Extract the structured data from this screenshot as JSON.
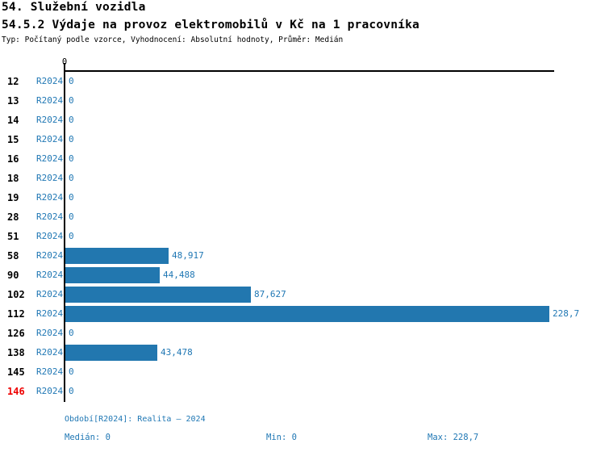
{
  "header": {
    "title1": "54. Služební vozidla",
    "title2": "54.5.2 Výdaje na provoz elektromobilů v Kč na 1 pracovníka",
    "meta": "Typ: Počítaný podle vzorce, Vyhodnocení: Absolutní hodnoty, Průměr: Medián"
  },
  "chart_data": {
    "type": "bar",
    "orientation": "horizontal",
    "title": "54.5.2 Výdaje na provoz elektromobilů v Kč na 1 pracovníka",
    "series_label": "R2024",
    "x_axis": {
      "position": "top",
      "ticks": [
        "0"
      ],
      "range": [
        0,
        231.4
      ]
    },
    "bar_color": "#2277af",
    "value_color": "#1f77b4",
    "highlight_color": "#ee0000",
    "rows": [
      {
        "category": "12",
        "value": 0,
        "display": "0",
        "highlight": false
      },
      {
        "category": "13",
        "value": 0,
        "display": "0",
        "highlight": false
      },
      {
        "category": "14",
        "value": 0,
        "display": "0",
        "highlight": false
      },
      {
        "category": "15",
        "value": 0,
        "display": "0",
        "highlight": false
      },
      {
        "category": "16",
        "value": 0,
        "display": "0",
        "highlight": false
      },
      {
        "category": "18",
        "value": 0,
        "display": "0",
        "highlight": false
      },
      {
        "category": "19",
        "value": 0,
        "display": "0",
        "highlight": false
      },
      {
        "category": "28",
        "value": 0,
        "display": "0",
        "highlight": false
      },
      {
        "category": "51",
        "value": 0,
        "display": "0",
        "highlight": false
      },
      {
        "category": "58",
        "value": 48.917,
        "display": "48,917",
        "highlight": false
      },
      {
        "category": "90",
        "value": 44.488,
        "display": "44,488",
        "highlight": false
      },
      {
        "category": "102",
        "value": 87.627,
        "display": "87,627",
        "highlight": false
      },
      {
        "category": "112",
        "value": 228.7,
        "display": "228,7",
        "highlight": false
      },
      {
        "category": "126",
        "value": 0,
        "display": "0",
        "highlight": false
      },
      {
        "category": "138",
        "value": 43.478,
        "display": "43,478",
        "highlight": false
      },
      {
        "category": "145",
        "value": 0,
        "display": "0",
        "highlight": false
      },
      {
        "category": "146",
        "value": 0,
        "display": "0",
        "highlight": true
      }
    ]
  },
  "footer": {
    "period": "Období[R2024]: Realita – 2024",
    "median": "Medián: 0",
    "min": "Min: 0",
    "max": "Max: 228,7"
  }
}
